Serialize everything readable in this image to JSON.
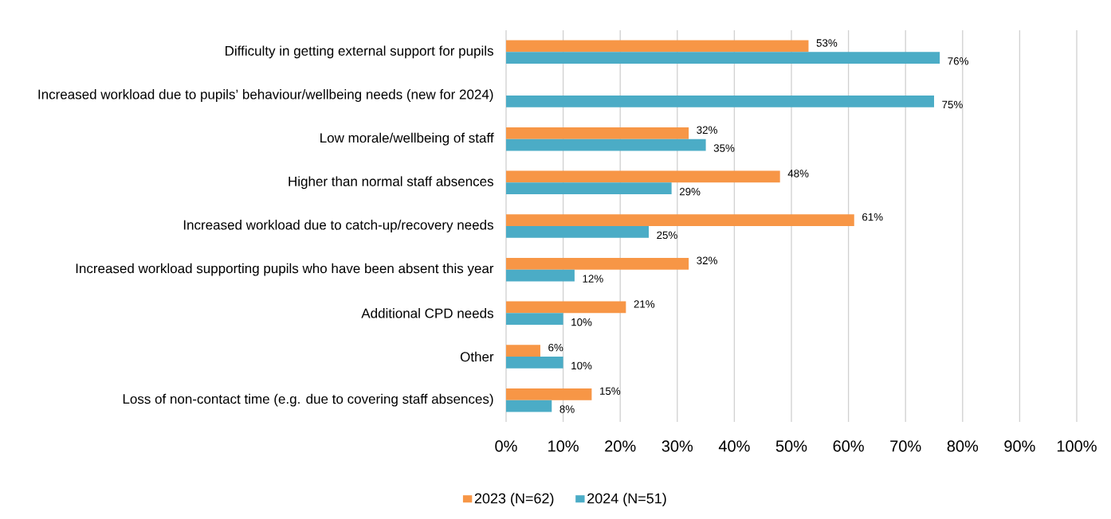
{
  "chart_data": {
    "type": "bar",
    "orientation": "horizontal",
    "categories": [
      "Difficulty in getting external support for pupils",
      "Increased workload due to pupils’ behaviour/wellbeing needs (new for 2024)",
      "Low morale/wellbeing of staff",
      "Higher than normal staff absences",
      "Increased workload due to catch-up/recovery needs",
      "Increased workload supporting pupils who have been absent this year",
      "Additional CPD needs",
      "Other",
      "Loss of non-contact time (e.g. due to covering staff absences)"
    ],
    "series": [
      {
        "name": "2023 (N=62)",
        "color": "#f79646",
        "values": [
          53,
          null,
          32,
          48,
          61,
          32,
          21,
          6,
          15
        ],
        "value_labels": [
          "53%",
          null,
          "32%",
          "48%",
          "61%",
          "32%",
          "21%",
          "6%",
          "15%"
        ]
      },
      {
        "name": "2024 (N=51)",
        "color": "#4bacc6",
        "values": [
          76,
          75,
          35,
          29,
          25,
          12,
          10,
          10,
          8
        ],
        "value_labels": [
          "76%",
          "75%",
          "35%",
          "29%",
          "25%",
          "12%",
          "10%",
          "10%",
          "8%"
        ]
      }
    ],
    "xlim": [
      0,
      100
    ],
    "xticks": [
      {
        "value": 0,
        "label": "0%"
      },
      {
        "value": 10,
        "label": "10%"
      },
      {
        "value": 20,
        "label": "20%"
      },
      {
        "value": 30,
        "label": "30%"
      },
      {
        "value": 40,
        "label": "40%"
      },
      {
        "value": 50,
        "label": "50%"
      },
      {
        "value": 60,
        "label": "60%"
      },
      {
        "value": 70,
        "label": "70%"
      },
      {
        "value": 80,
        "label": "80%"
      },
      {
        "value": 90,
        "label": "90%"
      },
      {
        "value": 100,
        "label": "100%"
      }
    ],
    "grid": "x",
    "legend": "bottom"
  }
}
